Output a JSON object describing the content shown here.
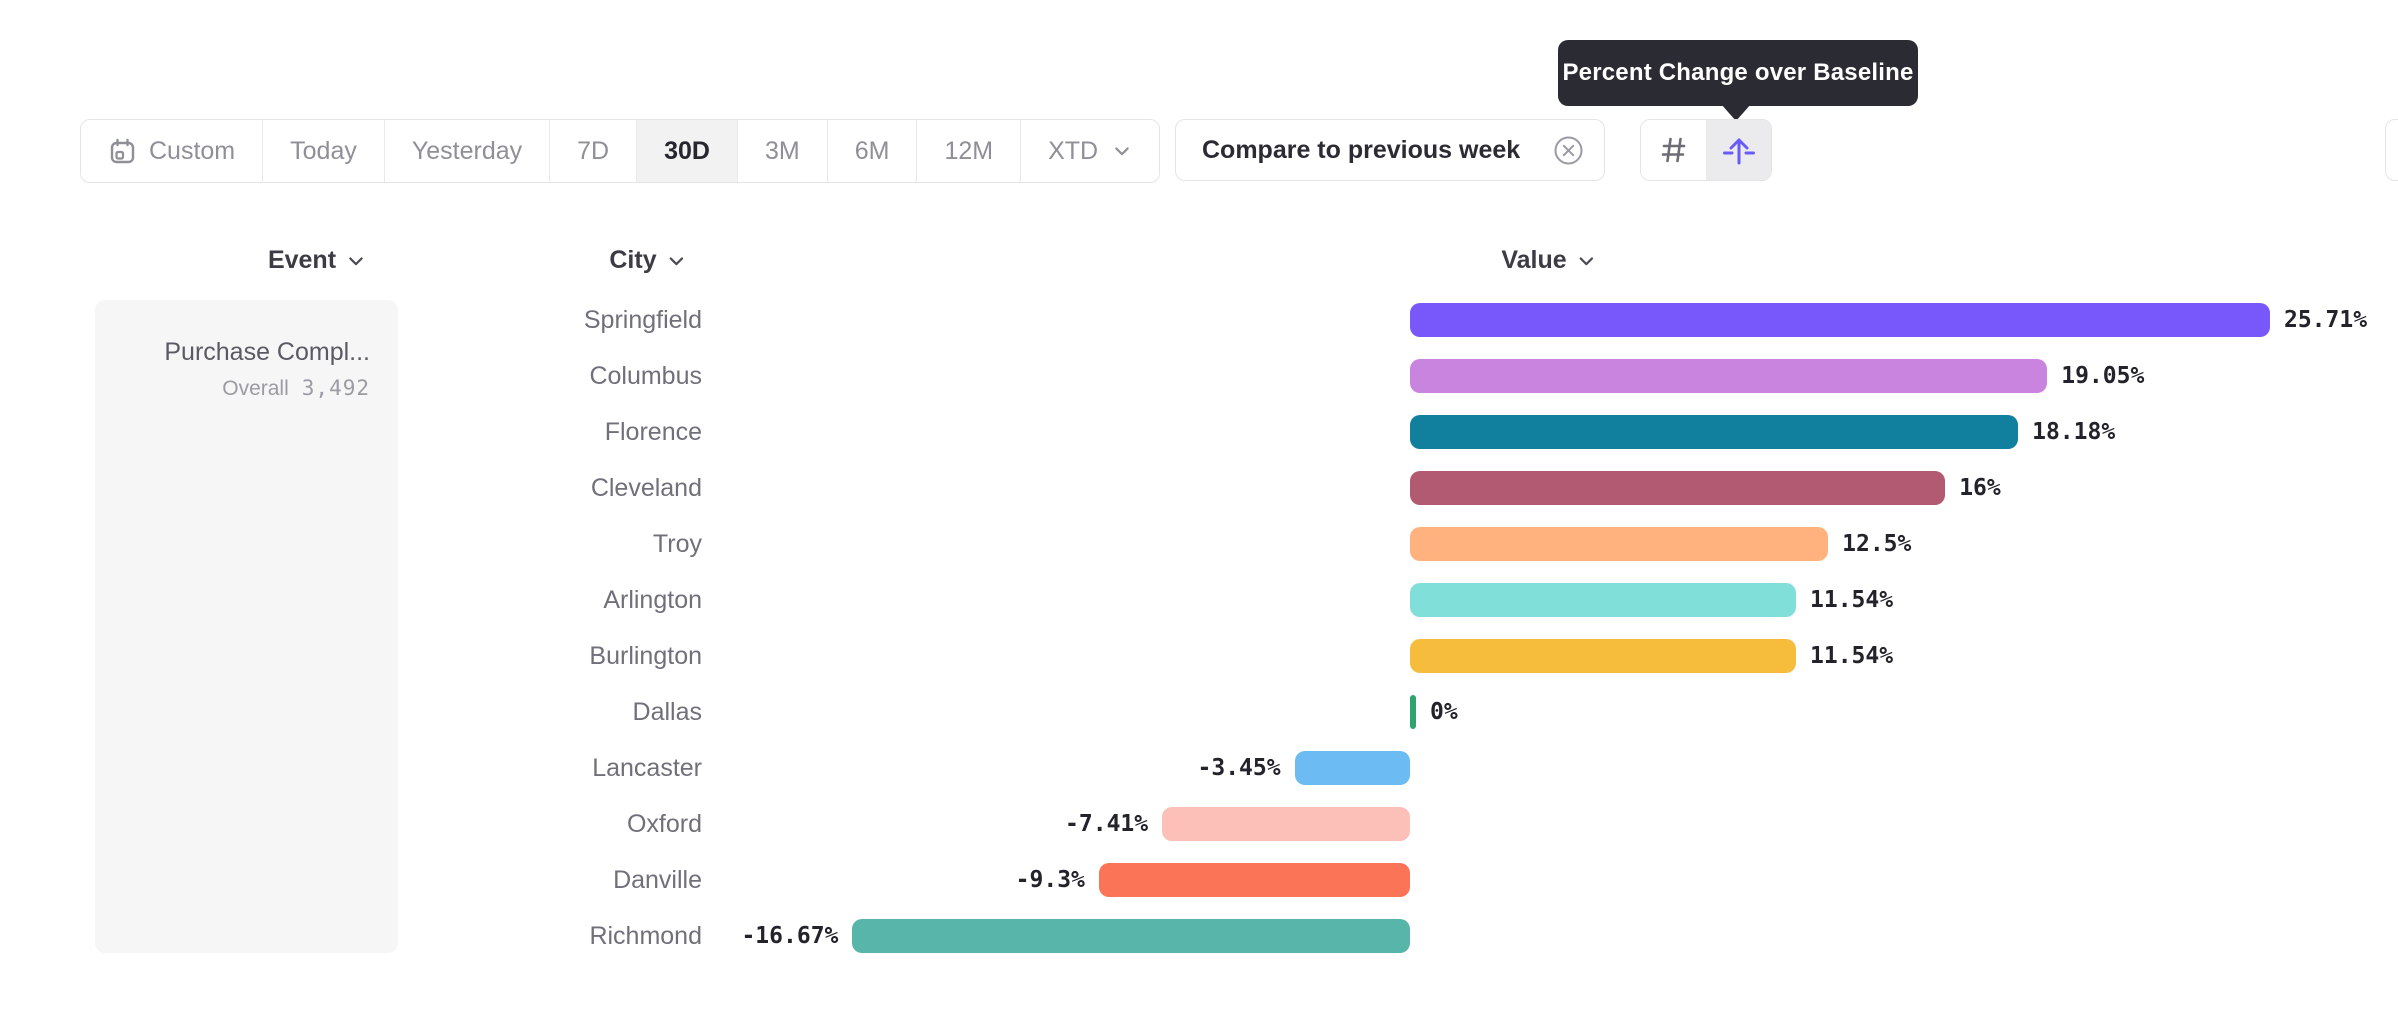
{
  "tooltip": {
    "text": "Percent Change over Baseline",
    "bg_color": "#2b2b33"
  },
  "toolbar": {
    "date_ranges": [
      {
        "label": "Custom",
        "icon": "calendar-icon"
      },
      {
        "label": "Today"
      },
      {
        "label": "Yesterday"
      },
      {
        "label": "7D"
      },
      {
        "label": "30D"
      },
      {
        "label": "3M"
      },
      {
        "label": "6M"
      },
      {
        "label": "12M"
      },
      {
        "label": "XTD",
        "icon_right": "chevron-down-icon"
      }
    ],
    "selected_range": "30D",
    "compare_chip": {
      "label": "Compare to previous week",
      "icon": "x-circle-icon"
    },
    "view_toggle": {
      "buttons": [
        {
          "name": "number-sign-icon",
          "selected": false
        },
        {
          "name": "percent-change-baseline-icon",
          "selected": true,
          "accent_color": "#6a5af9"
        }
      ]
    }
  },
  "columns": [
    {
      "label": "Event"
    },
    {
      "label": "City"
    },
    {
      "label": "Value"
    }
  ],
  "event_panel": {
    "title": "Purchase Compl...",
    "overall_label": "Overall",
    "overall_value": "3,492"
  },
  "chart_data": {
    "type": "bar",
    "orientation": "horizontal",
    "title": "Percent Change over Baseline",
    "xlabel": "Value",
    "ylabel": "City",
    "xlim": [
      -16.67,
      25.71
    ],
    "baseline": 0,
    "grid": false,
    "categories": [
      "Springfield",
      "Columbus",
      "Florence",
      "Cleveland",
      "Troy",
      "Arlington",
      "Burlington",
      "Dallas",
      "Lancaster",
      "Oxford",
      "Danville",
      "Richmond"
    ],
    "values": [
      25.71,
      19.05,
      18.18,
      16,
      12.5,
      11.54,
      11.54,
      0,
      -3.45,
      -7.41,
      -9.3,
      -16.67
    ],
    "labels": [
      "25.71%",
      "19.05%",
      "18.18%",
      "16%",
      "12.5%",
      "11.54%",
      "11.54%",
      "0%",
      "-3.45%",
      "-7.41%",
      "-9.3%",
      "-16.67%"
    ],
    "colors": [
      "#7858FA",
      "#C984E0",
      "#11809E",
      "#B25A72",
      "#FFB27D",
      "#80DFD8",
      "#F5BD3B",
      "#2EA36E",
      "#6CBBF2",
      "#FCC0B8",
      "#FC7458",
      "#58B5AA"
    ]
  }
}
